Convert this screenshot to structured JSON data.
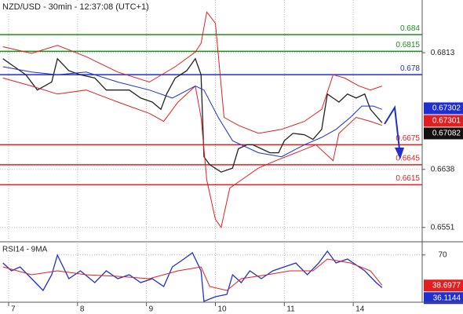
{
  "chart_data": [
    {
      "type": "line",
      "title": "NZD/USD - 30min - 12:37:08 (UTC+1)",
      "xlim": [
        -3,
        144
      ],
      "xticks": [
        {
          "value": 0,
          "label": "7"
        },
        {
          "value": 24,
          "label": "8"
        },
        {
          "value": 48,
          "label": "9"
        },
        {
          "value": 72,
          "label": "10"
        },
        {
          "value": 96,
          "label": "11"
        },
        {
          "value": 120,
          "label": "14"
        }
      ],
      "ylim": [
        0.6533,
        0.6892
      ],
      "yticks": [
        0.6551,
        0.6638,
        0.6813
      ],
      "grid": true,
      "levels": [
        {
          "value": 0.684,
          "color": "#1e8c1e"
        },
        {
          "value": 0.6815,
          "color": "#1e8c1e"
        },
        {
          "value": 0.678,
          "color": "#1f2fd0"
        },
        {
          "value": 0.6675,
          "color": "#e02020"
        },
        {
          "value": 0.6645,
          "color": "#e02020"
        },
        {
          "value": 0.6615,
          "color": "#e02020"
        }
      ],
      "price_tags": [
        {
          "value": 0.67302,
          "color": "#1f2fd0"
        },
        {
          "value": 0.67301,
          "color": "#e02020"
        },
        {
          "value": 0.67082,
          "color": "#111111"
        }
      ],
      "series": [
        {
          "color": "#222222",
          "x": [
            -2,
            2,
            6,
            10,
            15,
            17,
            21,
            25,
            30,
            34,
            38,
            42,
            46,
            50,
            53,
            55,
            58,
            62,
            65,
            67,
            68,
            70,
            74,
            78,
            80,
            83,
            85,
            88,
            91,
            94,
            96,
            99,
            103,
            106,
            109,
            111,
            113,
            115,
            118,
            121,
            124,
            126,
            130
          ],
          "values": [
            0.6804,
            0.6792,
            0.678,
            0.6757,
            0.6769,
            0.6804,
            0.6786,
            0.678,
            0.6775,
            0.6757,
            0.6757,
            0.6757,
            0.6745,
            0.6739,
            0.6728,
            0.6751,
            0.6775,
            0.6786,
            0.6804,
            0.678,
            0.6657,
            0.6645,
            0.6634,
            0.664,
            0.6669,
            0.6675,
            0.6675,
            0.6669,
            0.6663,
            0.6663,
            0.6681,
            0.6692,
            0.669,
            0.6683,
            0.6698,
            0.6751,
            0.6745,
            0.6739,
            0.6751,
            0.6745,
            0.6751,
            0.6728,
            0.6708
          ]
        },
        {
          "color": "#e02020",
          "x": [
            -2,
            8,
            17,
            27,
            38,
            49,
            58,
            65,
            67,
            69,
            72,
            75,
            80,
            87,
            95,
            103,
            109,
            113,
            117,
            122,
            126,
            130
          ],
          "values": [
            0.6822,
            0.6812,
            0.6824,
            0.6807,
            0.6784,
            0.6769,
            0.6792,
            0.6814,
            0.6827,
            0.6874,
            0.6857,
            0.6716,
            0.6704,
            0.6692,
            0.6698,
            0.671,
            0.6728,
            0.678,
            0.6775,
            0.6763,
            0.6757,
            0.6763
          ]
        },
        {
          "color": "#e02020",
          "x": [
            -2,
            8,
            17,
            27,
            38,
            49,
            54,
            59,
            65,
            67,
            69,
            72,
            74,
            77,
            81,
            87,
            93,
            100,
            107,
            110,
            113,
            115,
            121,
            126,
            130
          ],
          "values": [
            0.6775,
            0.6763,
            0.6751,
            0.6757,
            0.6739,
            0.6722,
            0.671,
            0.6739,
            0.6763,
            0.6716,
            0.6622,
            0.6563,
            0.6551,
            0.661,
            0.6622,
            0.664,
            0.6651,
            0.6663,
            0.6675,
            0.6663,
            0.6651,
            0.6692,
            0.6716,
            0.671,
            0.6704
          ]
        },
        {
          "color": "#1f2fd0",
          "x": [
            -2,
            8,
            17,
            27,
            38,
            49,
            57,
            65,
            68,
            73,
            78,
            87,
            95,
            103,
            109,
            114,
            119,
            123,
            127,
            130
          ],
          "values": [
            0.6792,
            0.6784,
            0.678,
            0.6784,
            0.6769,
            0.6757,
            0.6745,
            0.6763,
            0.6757,
            0.6716,
            0.6681,
            0.6663,
            0.6657,
            0.6675,
            0.6686,
            0.6698,
            0.6716,
            0.6733,
            0.6733,
            0.6728
          ]
        }
      ]
    },
    {
      "type": "line",
      "title": "RSI14 - 9MA",
      "xlim": [
        -3,
        144
      ],
      "ylim": [
        21,
        82
      ],
      "yticks": [
        70
      ],
      "price_tags": [
        {
          "value": 38.6977,
          "color": "#e02020"
        },
        {
          "value": 36.1144,
          "color": "#1f2fd0"
        }
      ],
      "series": [
        {
          "color": "#1f2fd0",
          "x": [
            -2,
            1,
            4,
            8,
            12,
            15,
            17,
            21,
            25,
            30,
            34,
            38,
            42,
            46,
            50,
            54,
            57,
            61,
            64,
            67,
            68,
            72,
            76,
            78,
            81,
            84,
            88,
            92,
            96,
            100,
            104,
            108,
            111,
            114,
            118,
            122,
            124,
            128,
            130
          ],
          "values": [
            61.7,
            53.5,
            57.6,
            45.4,
            33.2,
            49.5,
            69.8,
            45.4,
            53.5,
            41.3,
            53.5,
            45.4,
            49.5,
            41.3,
            45.4,
            37.3,
            57.6,
            65.7,
            72.2,
            53.5,
            22,
            26.7,
            29.1,
            49.5,
            41.3,
            53.5,
            45.4,
            53.5,
            57.6,
            61.7,
            49.5,
            61.7,
            73.9,
            61.7,
            65.7,
            57.6,
            53.5,
            41.3,
            36.1
          ]
        },
        {
          "color": "#e02020",
          "x": [
            -2,
            8,
            17,
            27,
            38,
            49,
            59,
            67,
            70,
            76,
            81,
            90,
            98,
            106,
            111,
            119,
            126,
            130
          ],
          "values": [
            57.6,
            49.5,
            53.5,
            49.5,
            47.8,
            45.4,
            53.5,
            57.6,
            37.3,
            33.2,
            45.4,
            49.5,
            53.5,
            53.5,
            65.7,
            61.7,
            53.5,
            38.7
          ]
        }
      ]
    }
  ]
}
